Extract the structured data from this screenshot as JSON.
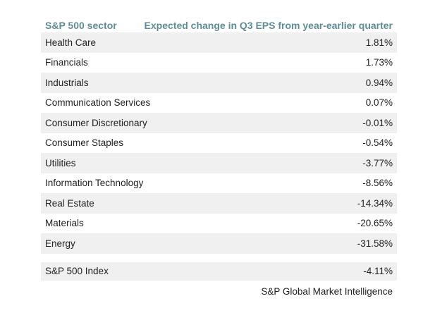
{
  "header": {
    "sector_label": "S&P 500 sector",
    "change_label": "Expected change in Q3 EPS from year-earlier quarter"
  },
  "rows": [
    {
      "sector": "Health Care",
      "change": "1.81%"
    },
    {
      "sector": "Financials",
      "change": "1.73%"
    },
    {
      "sector": "Industrials",
      "change": "0.94%"
    },
    {
      "sector": "Communication Services",
      "change": "0.07%"
    },
    {
      "sector": "Consumer Discretionary",
      "change": "-0.01%"
    },
    {
      "sector": "Consumer Staples",
      "change": "-0.54%"
    },
    {
      "sector": "Utilities",
      "change": "-3.77%"
    },
    {
      "sector": "Information Technology",
      "change": "-8.56%"
    },
    {
      "sector": "Real Estate",
      "change": "-14.34%"
    },
    {
      "sector": "Materials",
      "change": "-20.65%"
    },
    {
      "sector": "Energy",
      "change": "-31.58%"
    }
  ],
  "index": {
    "label": "S&P 500 Index",
    "change": "-4.11%"
  },
  "source": "S&P Global Market Intelligence",
  "colors": {
    "header_text": "#5e8e95",
    "row_shade": "#f0f0f0",
    "body_text": "#222222"
  }
}
